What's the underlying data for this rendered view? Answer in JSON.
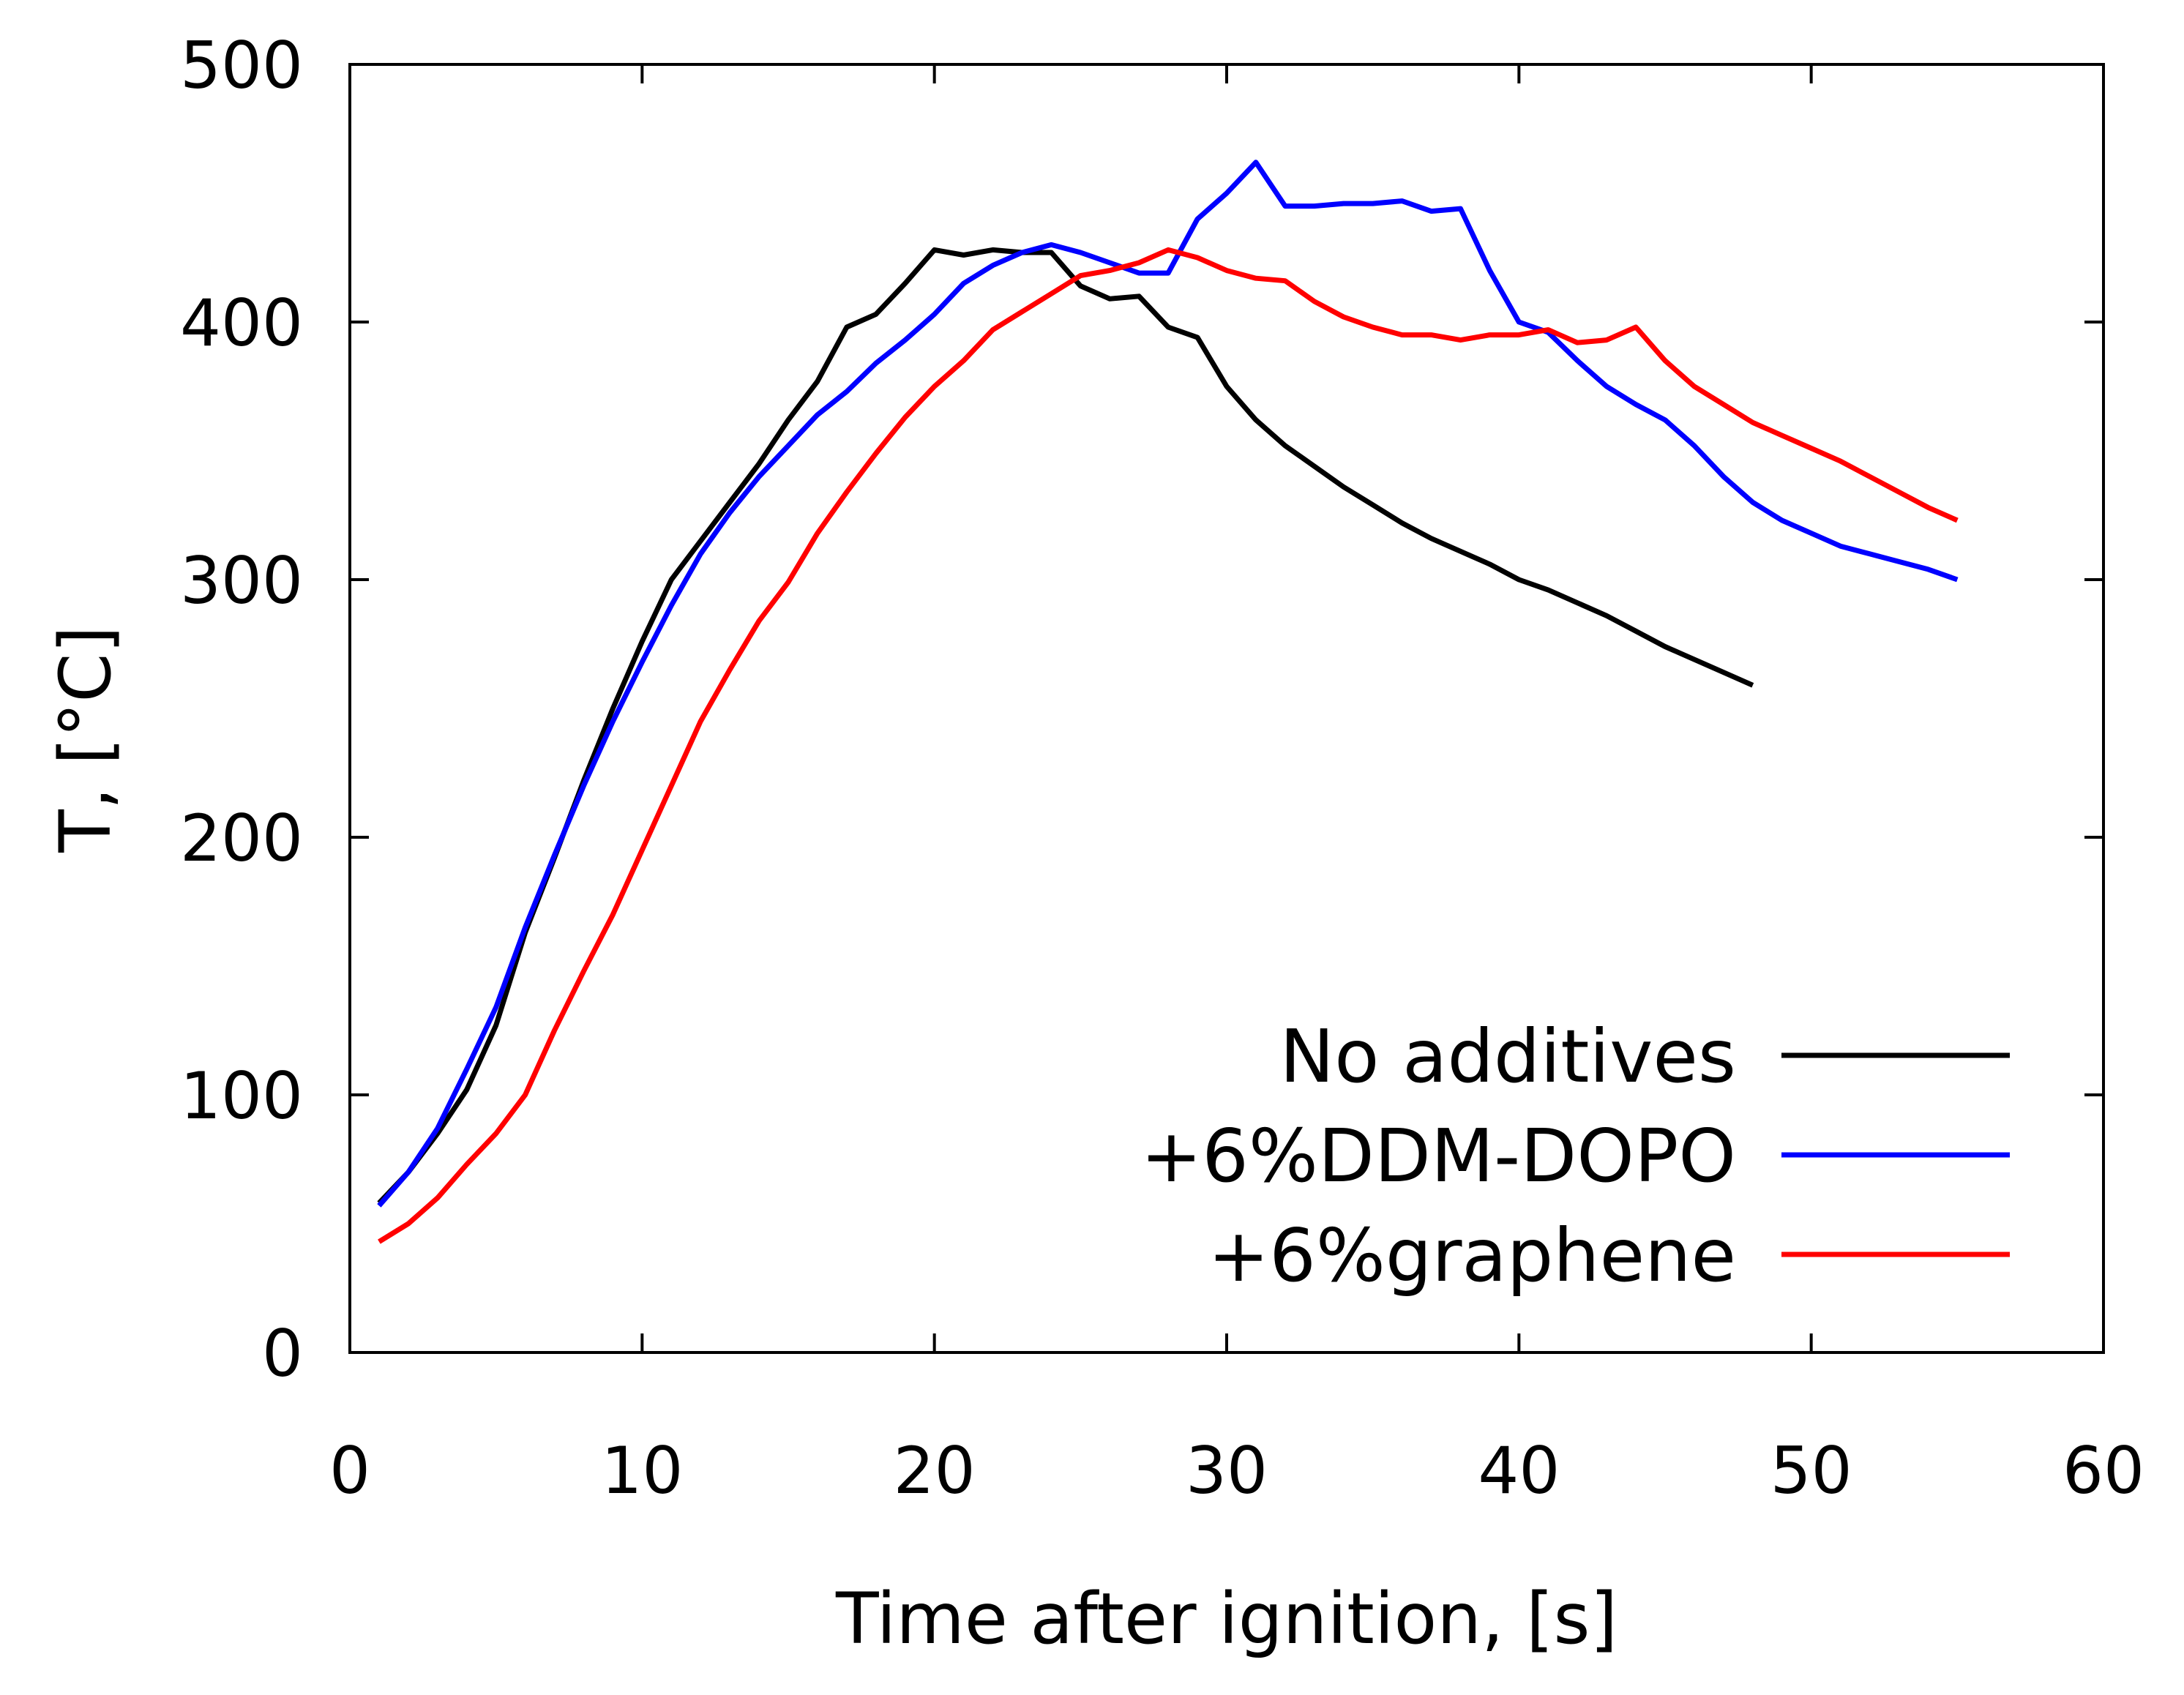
{
  "chart_data": {
    "type": "line",
    "title": "",
    "xlabel": "Time after ignition, [s]",
    "ylabel": "T, [°C]",
    "xlim": [
      0,
      60
    ],
    "ylim": [
      0,
      500
    ],
    "xticks": [
      0,
      10,
      20,
      30,
      40,
      50,
      60
    ],
    "yticks": [
      0,
      100,
      200,
      300,
      400,
      500
    ],
    "grid": false,
    "legend_position": "bottom-right",
    "series": [
      {
        "name": "No additives",
        "color": "#000000",
        "x": [
          1,
          2,
          3,
          4,
          5,
          6,
          7,
          8,
          9,
          10,
          11,
          12,
          13,
          14,
          15,
          16,
          17,
          18,
          19,
          20,
          21,
          22,
          23,
          24,
          25,
          26,
          27,
          28,
          29,
          30,
          31,
          32,
          33,
          34,
          35,
          36,
          37,
          38,
          39,
          40,
          41,
          42,
          43,
          44,
          45,
          46,
          47,
          48
        ],
        "y": [
          58,
          70,
          85,
          102,
          127,
          163,
          192,
          222,
          250,
          276,
          300,
          315,
          330,
          345,
          362,
          377,
          398,
          403,
          415,
          428,
          426,
          428,
          427,
          427,
          414,
          409,
          410,
          398,
          394,
          375,
          362,
          352,
          344,
          336,
          329,
          322,
          316,
          311,
          306,
          300,
          296,
          291,
          286,
          280,
          274,
          269,
          264,
          259
        ]
      },
      {
        "name": "+6%DDM-DOPO",
        "color": "#0000ff",
        "x": [
          1,
          2,
          3,
          4,
          5,
          6,
          7,
          8,
          9,
          10,
          11,
          12,
          13,
          14,
          15,
          16,
          17,
          18,
          19,
          20,
          21,
          22,
          23,
          24,
          25,
          26,
          27,
          28,
          29,
          30,
          31,
          32,
          33,
          34,
          35,
          36,
          37,
          38,
          39,
          40,
          41,
          42,
          43,
          44,
          45,
          46,
          47,
          48,
          49,
          50,
          51,
          52,
          53,
          54,
          55
        ],
        "y": [
          57,
          70,
          87,
          110,
          134,
          165,
          193,
          220,
          245,
          268,
          290,
          310,
          326,
          340,
          352,
          364,
          373,
          384,
          393,
          403,
          415,
          422,
          427,
          430,
          427,
          423,
          419,
          419,
          440,
          450,
          462,
          445,
          445,
          446,
          446,
          447,
          443,
          444,
          420,
          400,
          396,
          385,
          375,
          368,
          362,
          352,
          340,
          330,
          323,
          318,
          313,
          310,
          307,
          304,
          300
        ]
      },
      {
        "name": "+6%graphene",
        "color": "#ff0000",
        "x": [
          1,
          2,
          3,
          4,
          5,
          6,
          7,
          8,
          9,
          10,
          11,
          12,
          13,
          14,
          15,
          16,
          17,
          18,
          19,
          20,
          21,
          22,
          23,
          24,
          25,
          26,
          27,
          28,
          29,
          30,
          31,
          32,
          33,
          34,
          35,
          36,
          37,
          38,
          39,
          40,
          41,
          42,
          43,
          44,
          45,
          46,
          47,
          48,
          49,
          50,
          51,
          52,
          53,
          54,
          55
        ],
        "y": [
          43,
          50,
          60,
          73,
          85,
          100,
          125,
          148,
          170,
          195,
          220,
          245,
          265,
          284,
          299,
          318,
          334,
          349,
          363,
          375,
          385,
          397,
          404,
          411,
          418,
          420,
          423,
          428,
          425,
          420,
          417,
          416,
          408,
          402,
          398,
          395,
          395,
          393,
          395,
          395,
          397,
          392,
          393,
          398,
          385,
          375,
          368,
          361,
          356,
          351,
          346,
          340,
          334,
          328,
          323
        ]
      }
    ]
  }
}
